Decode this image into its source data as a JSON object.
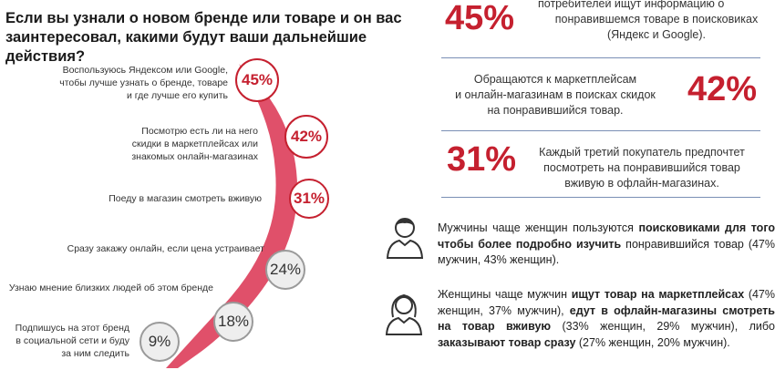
{
  "question": "Если вы узнали о новом бренде или товаре и он вас заинтересовал, какими будут ваши дальнейшие действия?",
  "colors": {
    "accent": "#c5202f",
    "arc": "#e0506a",
    "neutral_border": "#9a9a9a",
    "neutral_fill": "#eeeeee",
    "divider": "#7a8fb5"
  },
  "chart_data": {
    "type": "bar",
    "categories": [
      "Воспользуюсь Яндексом или Google, чтобы лучше узнать о бренде, товаре и где лучше его купить",
      "Посмотрю есть ли на него скидки в маркетплейсах или знакомых онлайн-магазинах",
      "Поеду в магазин смотреть вживую",
      "Сразу закажу онлайн, если цена устраивает",
      "Узнаю мнение близких людей об этом бренде",
      "Подпишусь на этот бренд в социальной сети и буду за ним следить"
    ],
    "values": [
      45,
      42,
      31,
      24,
      18,
      9
    ],
    "value_labels": [
      "45%",
      "42%",
      "31%",
      "24%",
      "18%",
      "9%"
    ],
    "highlighted": [
      true,
      true,
      true,
      false,
      false,
      false
    ]
  },
  "options": [
    {
      "label_lines": [
        "Воспользуюсь Яндексом или Google,",
        "чтобы лучше узнать о бренде, товаре",
        "и где лучше его купить"
      ]
    },
    {
      "label_lines": [
        "Посмотрю есть ли на него",
        "скидки в маркетплейсах или",
        "знакомых онлайн-магазинах"
      ]
    },
    {
      "label_lines": [
        "Поеду в магазин смотреть вживую"
      ]
    },
    {
      "label_lines": [
        "Сразу закажу онлайн, если цена устраивает"
      ]
    },
    {
      "label_lines": [
        "Узнаю мнение близких людей об этом бренде"
      ]
    },
    {
      "label_lines": [
        "Подпишусь на этот бренд",
        "в социальной сети и буду",
        "за ним следить"
      ]
    }
  ],
  "stats": [
    {
      "number": "45%",
      "lines": [
        "потребителей ищут информацию о",
        "понравившемся товаре в поисковиках",
        "(Яндекс и Google)."
      ]
    },
    {
      "number": "42%",
      "lines": [
        "Обращаются к маркетплейсам",
        "и онлайн-магазинам в поисках скидок",
        "на понравившийся товар."
      ]
    },
    {
      "number": "31%",
      "lines": [
        "Каждый третий покупатель предпочтет",
        "посмотреть на понравившийся товар",
        "вживую в офлайн-магазинах."
      ]
    }
  ],
  "insights": {
    "men": {
      "icon": "man-icon",
      "t1": "Мужчины чаще женщин пользуются ",
      "b1": "поисковиками для того чтобы более подробно изучить",
      "t2": " понравившийся товар (47% мужчин, 43% женщин)."
    },
    "women": {
      "icon": "woman-icon",
      "t1": "Женщины чаще мужчин ",
      "b1": "ищут товар на маркетплейсах",
      "t2": " (47% женщин, 37% мужчин), ",
      "b2": "едут в офлайн-магазины смотреть на товар вживую",
      "t3": " (33% женщин, 29% мужчин), либо ",
      "b3": "заказывают товар сразу",
      "t4": " (27% женщин, 20% мужчин)."
    }
  }
}
